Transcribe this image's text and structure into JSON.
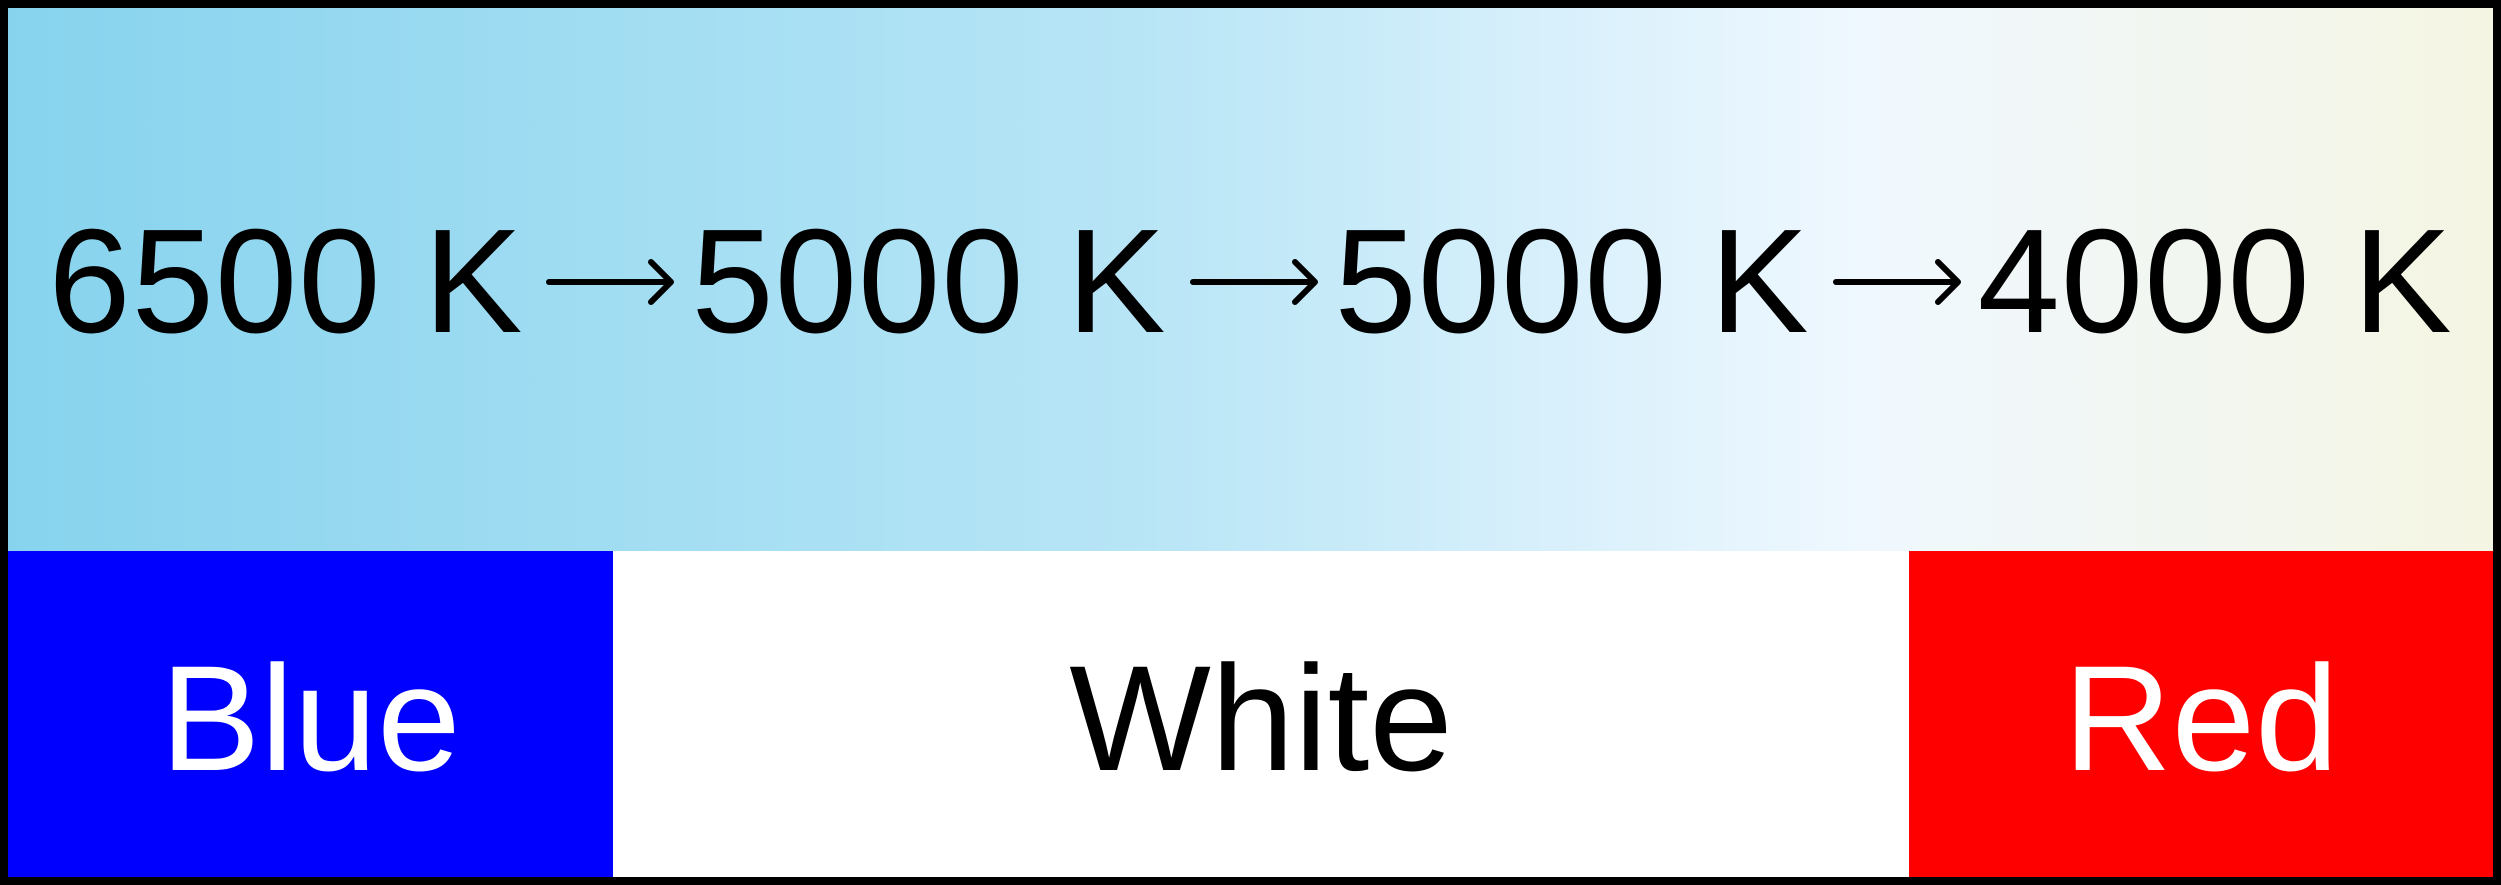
{
  "gradient": {
    "colors": [
      "#87d3ee",
      "#b7e5f6",
      "#f0f8ff",
      "#f4f5e2"
    ]
  },
  "temperatures": [
    {
      "label": "6500 K"
    },
    {
      "label": "5000 K"
    },
    {
      "label": "5000 K"
    },
    {
      "label": "4000 K"
    }
  ],
  "arrow_icon": "right-arrow-icon",
  "color_bands": [
    {
      "label": "Blue",
      "background": "#0000ff",
      "text_color": "#ffffff"
    },
    {
      "label": "White",
      "background": "#ffffff",
      "text_color": "#000000"
    },
    {
      "label": "Red",
      "background": "#ff0000",
      "text_color": "#ffffff"
    }
  ],
  "border_color": "#000000"
}
